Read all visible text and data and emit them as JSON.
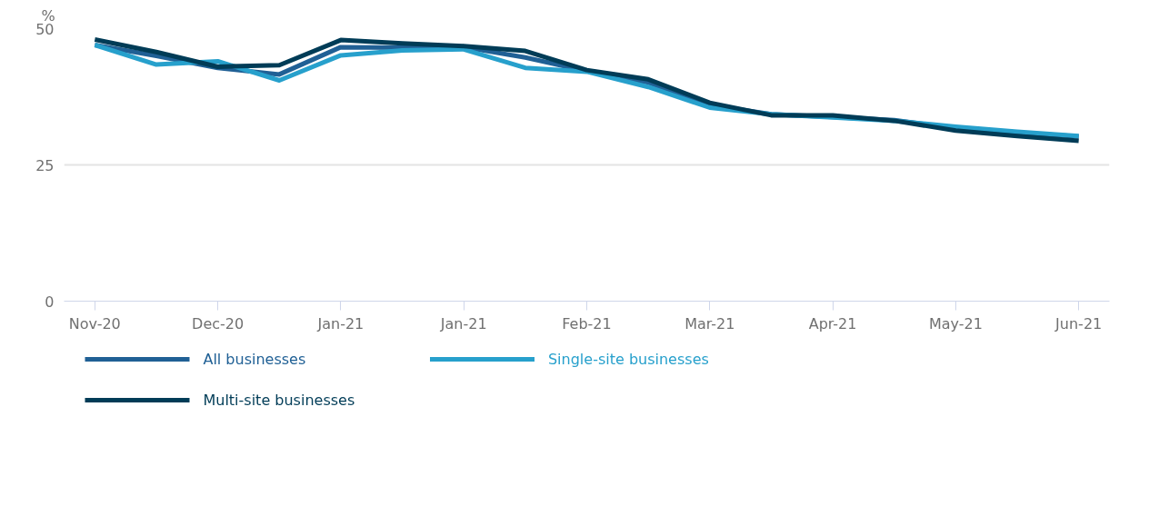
{
  "chart_data": {
    "type": "line",
    "ylabel": "%",
    "categories": [
      "Nov-20",
      null,
      "Dec-20",
      null,
      "Jan-21",
      null,
      "Jan-21",
      null,
      "Feb-21",
      null,
      "Mar-21",
      null,
      "Apr-21",
      null,
      "May-21",
      null,
      "Jun-21"
    ],
    "series": [
      {
        "name": "All businesses",
        "color": "#206095",
        "values": [
          47.0,
          45.0,
          42.8,
          41.6,
          46.6,
          46.5,
          46.6,
          44.7,
          42.2,
          40.1,
          36.0,
          34.3,
          33.8,
          33.2,
          31.7,
          30.9,
          30.2
        ]
      },
      {
        "name": "Single-site businesses",
        "color": "#27a0cc",
        "values": [
          47.0,
          43.4,
          44.0,
          40.5,
          45.1,
          46.0,
          46.2,
          42.8,
          42.1,
          39.3,
          35.5,
          34.3,
          33.7,
          33.1,
          32.0,
          31.1,
          30.3
        ]
      },
      {
        "name": "Multi-site businesses",
        "color": "#003c57",
        "values": [
          48.0,
          45.7,
          43.0,
          43.3,
          47.9,
          47.3,
          46.8,
          45.9,
          42.4,
          40.7,
          36.4,
          34.1,
          34.1,
          33.1,
          31.3,
          30.3,
          29.4
        ]
      }
    ],
    "ylim": [
      0,
      50
    ],
    "yticks": [
      0,
      25,
      50
    ],
    "grid": "y",
    "legend": "bottom",
    "marker": "none",
    "line_style": "solid"
  }
}
